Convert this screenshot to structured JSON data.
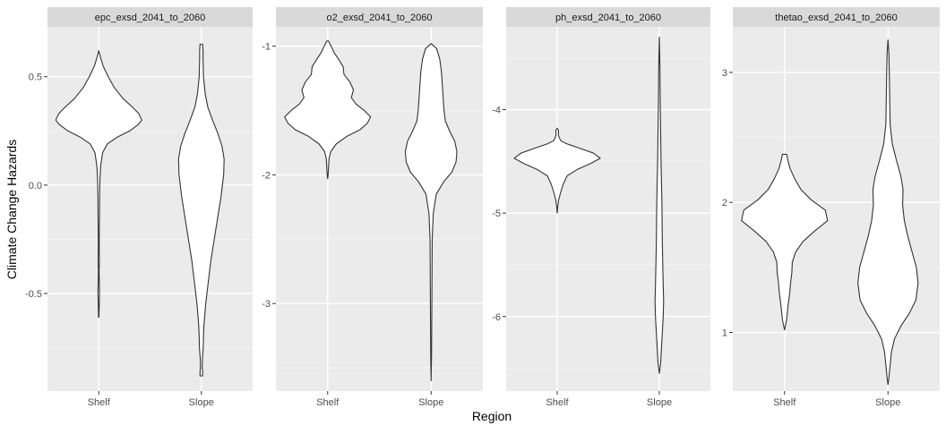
{
  "chart_data": {
    "type": "violin",
    "ylabel": "Climate Change Hazards",
    "xlabel": "Region",
    "categories": [
      "Shelf",
      "Slope"
    ],
    "grid": true,
    "facets": [
      {
        "title": "epc_exsd_2041_to_2060",
        "ylim": [
          -0.95,
          0.73
        ],
        "yticks": [
          0.5,
          0.0,
          -0.5
        ],
        "ytick_labels": [
          "0.5",
          "0.0",
          "-0.5"
        ],
        "violins": [
          {
            "category": "Shelf",
            "profile": [
              [
                -0.61,
                0.004
              ],
              [
                -0.55,
                0.012
              ],
              [
                -0.49,
                0.018
              ],
              [
                -0.44,
                0.012
              ],
              [
                -0.39,
                0.008
              ],
              [
                -0.35,
                0.016
              ],
              [
                -0.31,
                0.011
              ],
              [
                -0.24,
                0.011
              ],
              [
                -0.15,
                0.016
              ],
              [
                -0.05,
                0.02
              ],
              [
                0.03,
                0.028
              ],
              [
                0.09,
                0.045
              ],
              [
                0.15,
                0.09
              ],
              [
                0.19,
                0.2
              ],
              [
                0.22,
                0.42
              ],
              [
                0.25,
                0.72
              ],
              [
                0.28,
                0.92
              ],
              [
                0.3,
                1.0
              ],
              [
                0.33,
                0.93
              ],
              [
                0.36,
                0.78
              ],
              [
                0.4,
                0.56
              ],
              [
                0.45,
                0.36
              ],
              [
                0.5,
                0.22
              ],
              [
                0.55,
                0.1
              ],
              [
                0.59,
                0.04
              ],
              [
                0.62,
                0.0
              ]
            ]
          },
          {
            "category": "Slope",
            "profile": [
              [
                -0.88,
                0.03
              ],
              [
                -0.86,
                0.03
              ],
              [
                -0.84,
                0.02
              ],
              [
                -0.8,
                0.025
              ],
              [
                -0.75,
                0.045
              ],
              [
                -0.7,
                0.05
              ],
              [
                -0.65,
                0.06
              ],
              [
                -0.55,
                0.1
              ],
              [
                -0.45,
                0.16
              ],
              [
                -0.35,
                0.22
              ],
              [
                -0.25,
                0.3
              ],
              [
                -0.15,
                0.38
              ],
              [
                -0.05,
                0.46
              ],
              [
                0.05,
                0.52
              ],
              [
                0.12,
                0.53
              ],
              [
                0.18,
                0.48
              ],
              [
                0.24,
                0.38
              ],
              [
                0.3,
                0.26
              ],
              [
                0.36,
                0.15
              ],
              [
                0.42,
                0.09
              ],
              [
                0.5,
                0.05
              ],
              [
                0.58,
                0.04
              ],
              [
                0.62,
                0.04
              ],
              [
                0.65,
                0.03
              ]
            ]
          }
        ]
      },
      {
        "title": "o2_exsd_2041_to_2060",
        "ylim": [
          -3.68,
          -0.85
        ],
        "yticks": [
          -1,
          -2,
          -3
        ],
        "ytick_labels": [
          "-1",
          "-2",
          "-3"
        ],
        "violins": [
          {
            "category": "Shelf",
            "profile": [
              [
                -2.03,
                0.0
              ],
              [
                -2.0,
                0.01
              ],
              [
                -1.95,
                0.02
              ],
              [
                -1.88,
                0.03
              ],
              [
                -1.82,
                0.07
              ],
              [
                -1.76,
                0.2
              ],
              [
                -1.7,
                0.45
              ],
              [
                -1.65,
                0.75
              ],
              [
                -1.6,
                0.92
              ],
              [
                -1.55,
                1.0
              ],
              [
                -1.5,
                0.85
              ],
              [
                -1.45,
                0.66
              ],
              [
                -1.4,
                0.55
              ],
              [
                -1.34,
                0.6
              ],
              [
                -1.28,
                0.52
              ],
              [
                -1.22,
                0.38
              ],
              [
                -1.16,
                0.36
              ],
              [
                -1.1,
                0.25
              ],
              [
                -1.05,
                0.15
              ],
              [
                -1.0,
                0.08
              ],
              [
                -0.96,
                0.02
              ]
            ]
          },
          {
            "category": "Slope",
            "profile": [
              [
                -3.6,
                0.0
              ],
              [
                -3.4,
                0.01
              ],
              [
                -3.1,
                0.015
              ],
              [
                -2.8,
                0.02
              ],
              [
                -2.5,
                0.025
              ],
              [
                -2.3,
                0.05
              ],
              [
                -2.15,
                0.12
              ],
              [
                -2.05,
                0.3
              ],
              [
                -1.98,
                0.48
              ],
              [
                -1.9,
                0.58
              ],
              [
                -1.82,
                0.6
              ],
              [
                -1.74,
                0.55
              ],
              [
                -1.66,
                0.43
              ],
              [
                -1.58,
                0.33
              ],
              [
                -1.5,
                0.3
              ],
              [
                -1.4,
                0.28
              ],
              [
                -1.3,
                0.26
              ],
              [
                -1.2,
                0.24
              ],
              [
                -1.1,
                0.2
              ],
              [
                -1.02,
                0.13
              ],
              [
                -0.98,
                0.0
              ]
            ]
          }
        ]
      },
      {
        "title": "ph_exsd_2041_to_2060",
        "ylim": [
          -6.72,
          -3.2
        ],
        "yticks": [
          -4,
          -5,
          -6
        ],
        "ytick_labels": [
          "-4",
          "-5",
          "-6"
        ],
        "violins": [
          {
            "category": "Shelf",
            "profile": [
              [
                -5.0,
                0.0
              ],
              [
                -4.95,
                0.01
              ],
              [
                -4.88,
                0.03
              ],
              [
                -4.8,
                0.08
              ],
              [
                -4.72,
                0.14
              ],
              [
                -4.64,
                0.23
              ],
              [
                -4.58,
                0.46
              ],
              [
                -4.52,
                0.78
              ],
              [
                -4.47,
                1.0
              ],
              [
                -4.42,
                0.84
              ],
              [
                -4.37,
                0.5
              ],
              [
                -4.33,
                0.22
              ],
              [
                -4.3,
                0.08
              ],
              [
                -4.25,
                0.03
              ],
              [
                -4.2,
                0.03
              ],
              [
                -4.18,
                0.0
              ]
            ]
          },
          {
            "category": "Slope",
            "profile": [
              [
                -6.55,
                0.0
              ],
              [
                -6.45,
                0.03
              ],
              [
                -6.3,
                0.05
              ],
              [
                -6.15,
                0.07
              ],
              [
                -6.0,
                0.09
              ],
              [
                -5.85,
                0.1
              ],
              [
                -5.7,
                0.09
              ],
              [
                -5.5,
                0.08
              ],
              [
                -5.3,
                0.07
              ],
              [
                -5.1,
                0.065
              ],
              [
                -4.9,
                0.06
              ],
              [
                -4.7,
                0.05
              ],
              [
                -4.5,
                0.04
              ],
              [
                -4.2,
                0.03
              ],
              [
                -3.9,
                0.02
              ],
              [
                -3.6,
                0.015
              ],
              [
                -3.3,
                0.0
              ]
            ]
          }
        ]
      },
      {
        "title": "thetao_exsd_2041_to_2060",
        "ylim": [
          0.55,
          3.35
        ],
        "yticks": [
          1,
          2,
          3
        ],
        "ytick_labels": [
          "1",
          "2",
          "3"
        ],
        "violins": [
          {
            "category": "Shelf",
            "profile": [
              [
                1.02,
                0.0
              ],
              [
                1.05,
                0.02
              ],
              [
                1.1,
                0.05
              ],
              [
                1.2,
                0.08
              ],
              [
                1.3,
                0.12
              ],
              [
                1.38,
                0.14
              ],
              [
                1.46,
                0.17
              ],
              [
                1.54,
                0.18
              ],
              [
                1.62,
                0.26
              ],
              [
                1.7,
                0.43
              ],
              [
                1.78,
                0.7
              ],
              [
                1.86,
                1.0
              ],
              [
                1.94,
                0.95
              ],
              [
                2.02,
                0.62
              ],
              [
                2.1,
                0.38
              ],
              [
                2.18,
                0.24
              ],
              [
                2.26,
                0.13
              ],
              [
                2.32,
                0.08
              ],
              [
                2.37,
                0.05
              ]
            ]
          },
          {
            "category": "Slope",
            "profile": [
              [
                0.6,
                0.0
              ],
              [
                0.65,
                0.02
              ],
              [
                0.75,
                0.05
              ],
              [
                0.85,
                0.08
              ],
              [
                0.95,
                0.15
              ],
              [
                1.05,
                0.3
              ],
              [
                1.15,
                0.5
              ],
              [
                1.25,
                0.65
              ],
              [
                1.38,
                0.7
              ],
              [
                1.5,
                0.66
              ],
              [
                1.62,
                0.56
              ],
              [
                1.74,
                0.46
              ],
              [
                1.86,
                0.38
              ],
              [
                1.98,
                0.34
              ],
              [
                2.1,
                0.35
              ],
              [
                2.2,
                0.3
              ],
              [
                2.32,
                0.2
              ],
              [
                2.45,
                0.1
              ],
              [
                2.6,
                0.05
              ],
              [
                2.8,
                0.04
              ],
              [
                3.0,
                0.03
              ],
              [
                3.15,
                0.02
              ],
              [
                3.25,
                0.0
              ]
            ]
          }
        ]
      }
    ]
  }
}
